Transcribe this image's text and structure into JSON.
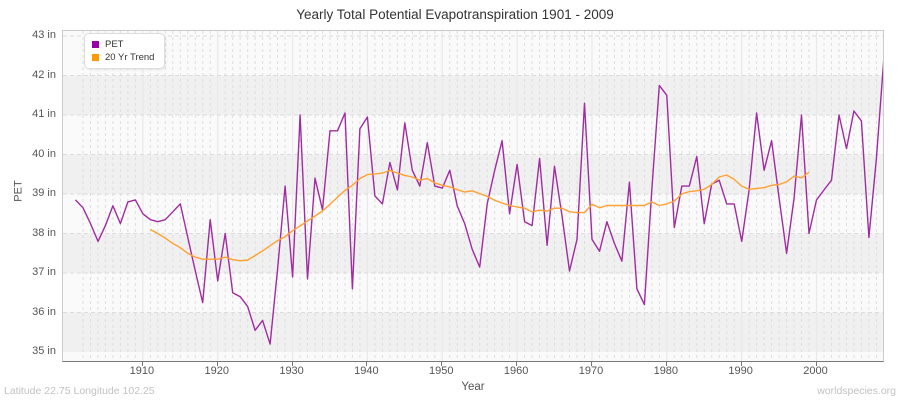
{
  "title": "Yearly Total Potential Evapotranspiration 1901 - 2009",
  "legend": {
    "items": [
      {
        "label": "PET",
        "color": "#9900aa"
      },
      {
        "label": "20 Yr Trend",
        "color": "#ff9900"
      }
    ]
  },
  "y_axis": {
    "label": "PET",
    "tick_labels": [
      "43 in",
      "42 in",
      "41 in",
      "40 in",
      "39 in",
      "38 in",
      "37 in",
      "36 in",
      "35 in"
    ],
    "min": 35,
    "max": 43
  },
  "x_axis": {
    "label": "Year",
    "tick_labels": [
      "1910",
      "1920",
      "1930",
      "1940",
      "1950",
      "1960",
      "1970",
      "1980",
      "1990",
      "2000"
    ]
  },
  "footer": {
    "left": "Latitude 22.75 Longitude 102.25",
    "right": "worldspecies.org"
  },
  "colors": {
    "pet_line": "#a02ca0",
    "trend_line": "#ffa033",
    "band_light": "#fafafa",
    "band_shaded": "#f0f0f0",
    "grid_dash": "#dcdcdc",
    "grid_minor_v": "#dedede",
    "grid_decade": "#e9e9e9",
    "plot_border": "#cccccc",
    "axis_line": "#777777",
    "tick_text": "#555555",
    "title_text": "#333333",
    "footer_text": "#c2c2c2"
  },
  "chart_data": {
    "type": "line",
    "title": "Yearly Total Potential Evapotranspiration 1901 - 2009",
    "xlabel": "Year",
    "ylabel": "PET",
    "unit": "in",
    "xlim": [
      1901,
      2009
    ],
    "ylim": [
      35,
      43
    ],
    "grid": true,
    "legend_position": "top-left",
    "series": [
      {
        "name": "PET",
        "x_start": 1901,
        "x_end": 2009,
        "values": [
          38.85,
          38.65,
          38.25,
          37.8,
          38.2,
          38.7,
          38.25,
          38.8,
          38.85,
          38.5,
          38.35,
          38.3,
          38.35,
          38.55,
          38.75,
          37.9,
          37.05,
          36.25,
          38.35,
          36.8,
          38.0,
          36.5,
          36.4,
          36.15,
          35.55,
          35.8,
          35.2,
          37.1,
          39.2,
          36.9,
          41.0,
          36.85,
          39.4,
          38.6,
          40.6,
          40.6,
          41.05,
          36.6,
          40.65,
          40.95,
          38.95,
          38.75,
          39.8,
          39.1,
          40.8,
          39.6,
          39.2,
          40.3,
          39.2,
          39.15,
          39.6,
          38.7,
          38.25,
          37.6,
          37.15,
          38.75,
          39.6,
          40.35,
          38.5,
          39.75,
          38.3,
          38.2,
          39.9,
          37.7,
          39.7,
          38.45,
          37.05,
          37.85,
          41.3,
          37.85,
          37.55,
          38.3,
          37.75,
          37.3,
          39.3,
          36.6,
          36.2,
          39.1,
          41.75,
          41.5,
          38.15,
          39.2,
          39.2,
          39.95,
          38.25,
          39.25,
          39.35,
          38.75,
          38.75,
          37.8,
          39.1,
          41.05,
          39.6,
          40.35,
          38.9,
          37.5,
          38.9,
          41.0,
          38.0,
          38.85,
          39.1,
          39.35,
          41.0,
          40.15,
          41.1,
          40.85,
          37.9,
          39.9,
          42.45
        ]
      },
      {
        "name": "20 Yr Trend",
        "x_start": 1911,
        "x_end": 1999,
        "values": [
          38.1,
          38.0,
          37.88,
          37.75,
          37.64,
          37.5,
          37.4,
          37.35,
          37.35,
          37.35,
          37.4,
          37.34,
          37.31,
          37.33,
          37.44,
          37.56,
          37.69,
          37.82,
          37.92,
          38.07,
          38.19,
          38.32,
          38.44,
          38.57,
          38.74,
          38.92,
          39.09,
          39.22,
          39.39,
          39.49,
          39.51,
          39.53,
          39.6,
          39.53,
          39.47,
          39.43,
          39.35,
          39.39,
          39.28,
          39.22,
          39.18,
          39.11,
          39.05,
          39.08,
          39.01,
          38.94,
          38.84,
          38.77,
          38.71,
          38.67,
          38.64,
          38.55,
          38.59,
          38.57,
          38.64,
          38.64,
          38.55,
          38.53,
          38.53,
          38.74,
          38.65,
          38.71,
          38.71,
          38.71,
          38.71,
          38.71,
          38.71,
          38.8,
          38.71,
          38.75,
          38.82,
          39.0,
          39.06,
          39.08,
          39.12,
          39.24,
          39.43,
          39.48,
          39.37,
          39.2,
          39.12,
          39.14,
          39.16,
          39.22,
          39.24,
          39.31,
          39.45,
          39.41,
          39.55
        ]
      }
    ]
  }
}
